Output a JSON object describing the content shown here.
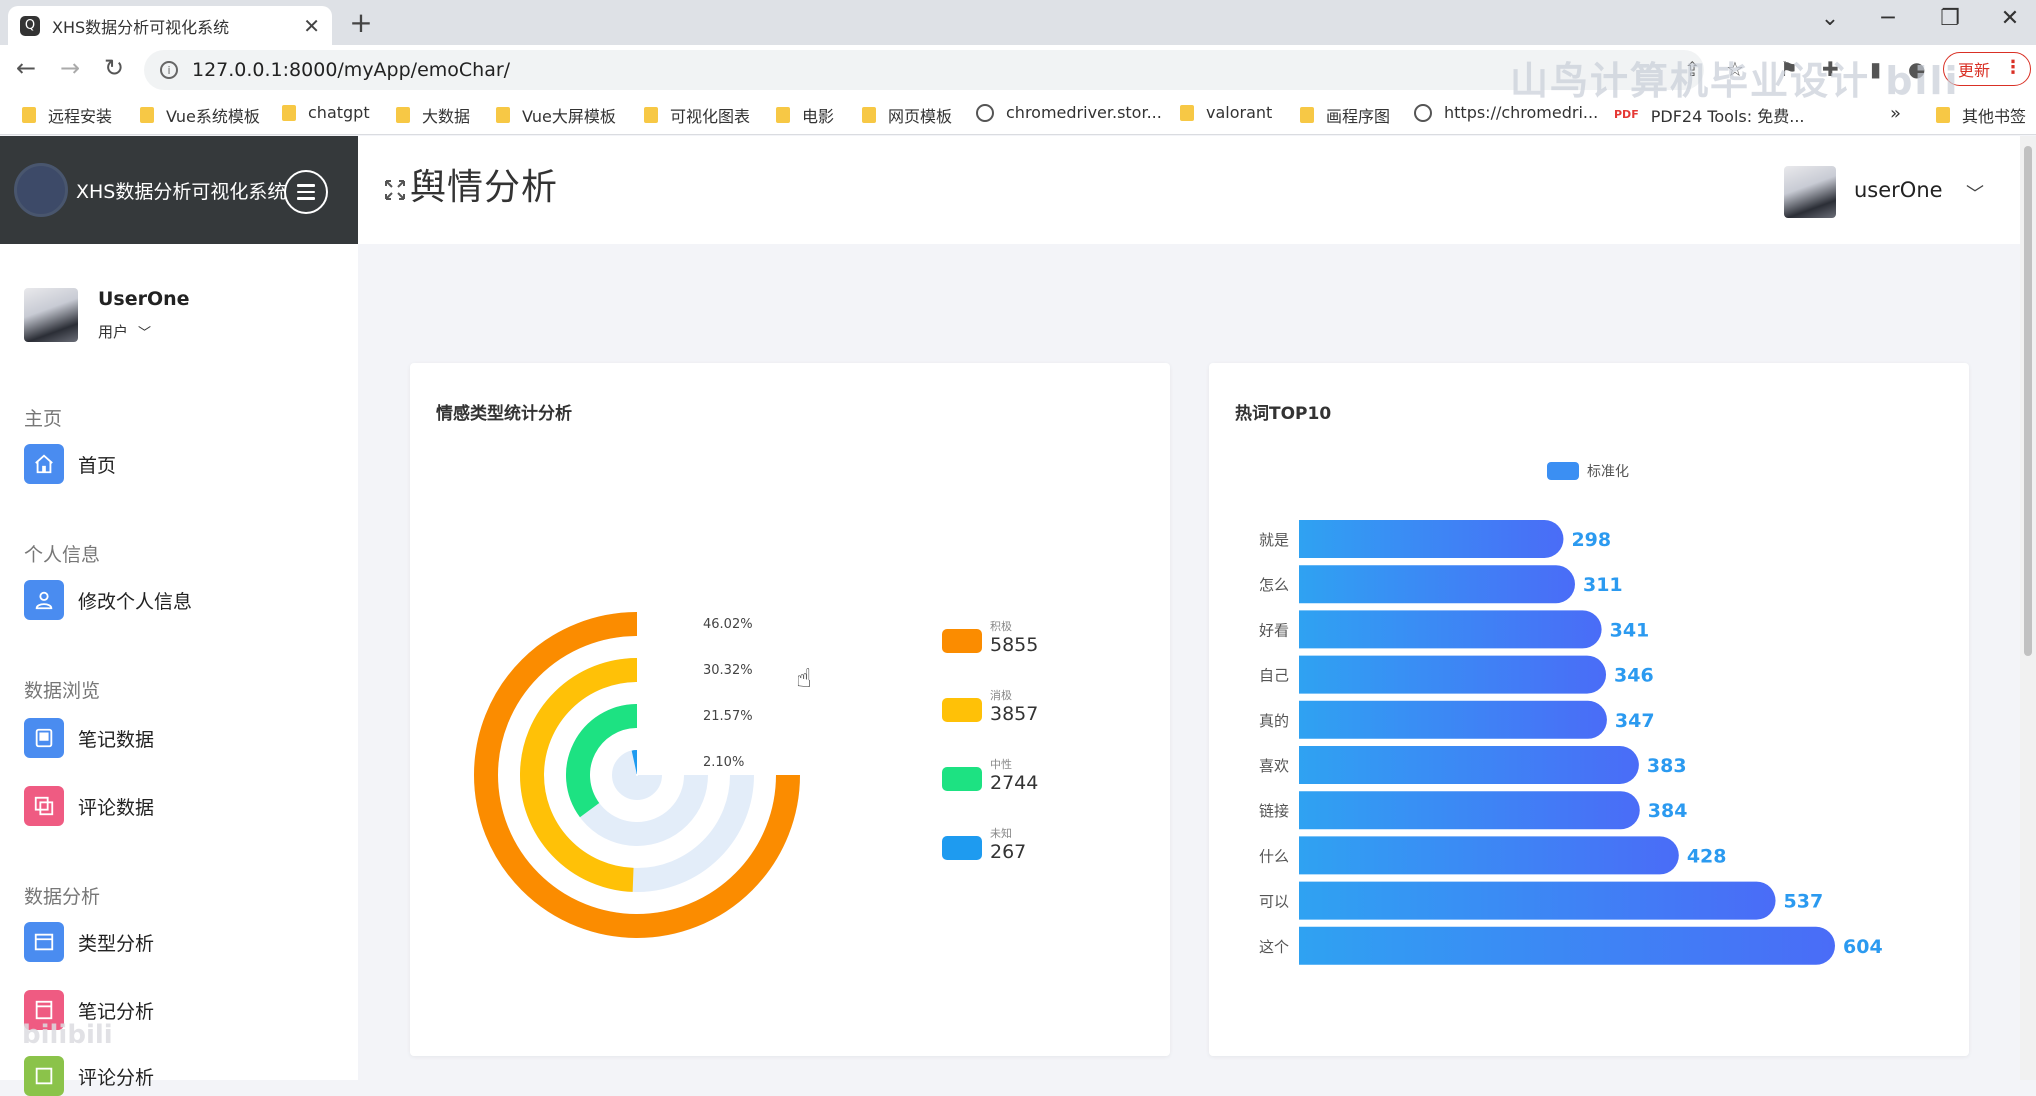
{
  "browser": {
    "tab_title": "XHS数据分析可视化系统",
    "url": "127.0.0.1:8000/myApp/emoChar/",
    "update_label": "更新",
    "bookmarks": [
      {
        "label": "远程安装",
        "type": "folder"
      },
      {
        "label": "Vue系统模板",
        "type": "folder"
      },
      {
        "label": "chatgpt",
        "type": "folder"
      },
      {
        "label": "大数据",
        "type": "folder"
      },
      {
        "label": "Vue大屏模板",
        "type": "folder"
      },
      {
        "label": "可视化图表",
        "type": "folder"
      },
      {
        "label": "电影",
        "type": "folder"
      },
      {
        "label": "网页模板",
        "type": "folder"
      },
      {
        "label": "chromedriver.stor...",
        "type": "globe"
      },
      {
        "label": "valorant",
        "type": "folder"
      },
      {
        "label": "画程序图",
        "type": "folder"
      },
      {
        "label": "https://chromedri...",
        "type": "globe"
      },
      {
        "label": "PDF24 Tools: 免费...",
        "type": "pdf"
      }
    ],
    "more": "»",
    "other_bookmarks": "其他书签"
  },
  "app": {
    "brand": "XHS数据分析可视化系统",
    "user": {
      "name": "UserOne",
      "role": "用户"
    },
    "header_user": "userOne",
    "page_title": "舆情分析",
    "sections": [
      {
        "title": "主页",
        "items": [
          {
            "label": "首页",
            "icon": "home-icon",
            "color": "#4a8cf0"
          }
        ]
      },
      {
        "title": "个人信息",
        "items": [
          {
            "label": "修改个人信息",
            "icon": "user-icon",
            "color": "#4a8cf0"
          }
        ]
      },
      {
        "title": "数据浏览",
        "items": [
          {
            "label": "笔记数据",
            "icon": "tablet-icon",
            "color": "#4a8cf0"
          },
          {
            "label": "评论数据",
            "icon": "copy-icon",
            "color": "#ef5b82"
          }
        ]
      },
      {
        "title": "数据分析",
        "items": [
          {
            "label": "类型分析",
            "icon": "window-icon",
            "color": "#4a8cf0"
          },
          {
            "label": "笔记分析",
            "icon": "calendar-icon",
            "color": "#ef5b82"
          },
          {
            "label": "评论分析",
            "icon": "box-icon",
            "color": "#8bc34a"
          }
        ]
      }
    ]
  },
  "charts": {
    "emotion": {
      "title": "情感类型统计分析"
    },
    "hotwords": {
      "title": "热词TOP10",
      "legend": "标准化"
    }
  },
  "chart_data": [
    {
      "type": "pie",
      "subtype": "radial-bar",
      "title": "情感类型统计分析",
      "categories": [
        "积极",
        "消极",
        "中性",
        "未知"
      ],
      "values": [
        5855,
        3857,
        2744,
        267
      ],
      "percent_labels": [
        "46.02%",
        "30.32%",
        "21.57%",
        "2.10%"
      ],
      "colors": [
        "#fb8c00",
        "#ffc107",
        "#1de282",
        "#1e9bf0"
      ],
      "legend_position": "right"
    },
    {
      "type": "bar",
      "orientation": "horizontal",
      "title": "热词TOP10",
      "categories": [
        "就是",
        "怎么",
        "好看",
        "自己",
        "真的",
        "喜欢",
        "链接",
        "什么",
        "可以",
        "这个"
      ],
      "series": [
        {
          "name": "标准化",
          "values": [
            298,
            311,
            341,
            346,
            347,
            383,
            384,
            428,
            537,
            604
          ]
        }
      ],
      "legend_position": "top"
    }
  ],
  "watermark": "bilibili"
}
